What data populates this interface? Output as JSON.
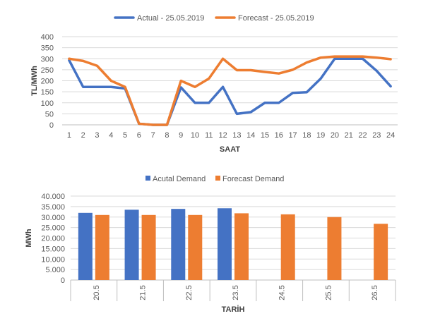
{
  "colors": {
    "actual": "#4472C4",
    "forecast": "#ED7D31",
    "grid": "#D9D9D9",
    "axis": "#BFBFBF"
  },
  "chart_data": [
    {
      "type": "line",
      "title": "",
      "xlabel": "SAAT",
      "ylabel": "TL/MWh",
      "categories": [
        "1",
        "2",
        "3",
        "4",
        "5",
        "6",
        "7",
        "8",
        "9",
        "10",
        "11",
        "12",
        "13",
        "14",
        "15",
        "16",
        "17",
        "18",
        "19",
        "20",
        "21",
        "22",
        "23",
        "24"
      ],
      "ylim": [
        0,
        400
      ],
      "yticks": [
        "0",
        "50",
        "100",
        "150",
        "200",
        "250",
        "300",
        "350",
        "400"
      ],
      "grid": true,
      "legend": "top-center",
      "series": [
        {
          "name": "Actual - 25.05.2019",
          "color_key": "actual",
          "values": [
            293,
            172,
            172,
            172,
            165,
            5,
            0,
            0,
            170,
            100,
            100,
            172,
            50,
            58,
            100,
            100,
            145,
            148,
            210,
            300,
            300,
            300,
            245,
            175
          ]
        },
        {
          "name": "Forecast - 25.05.2019",
          "color_key": "forecast",
          "values": [
            300,
            290,
            268,
            200,
            172,
            5,
            0,
            0,
            200,
            172,
            210,
            300,
            248,
            248,
            240,
            233,
            250,
            283,
            305,
            310,
            310,
            310,
            305,
            298
          ]
        }
      ]
    },
    {
      "type": "bar",
      "title": "",
      "xlabel": "TARİH",
      "ylabel": "MWh",
      "categories": [
        "20.5",
        "21.5",
        "22.5",
        "23.5",
        "24.5",
        "25.5",
        "26.5"
      ],
      "ylim": [
        0,
        40000
      ],
      "yticks": [
        "0",
        "5.000",
        "10.000",
        "15.000",
        "20.000",
        "25.000",
        "30.000",
        "35.000",
        "40.000"
      ],
      "grid": true,
      "legend": "top-center",
      "series": [
        {
          "name": "Acutal Demand",
          "color_key": "actual",
          "values": [
            32000,
            33500,
            33900,
            34200,
            null,
            null,
            null
          ]
        },
        {
          "name": "Forecast Demand",
          "color_key": "forecast",
          "values": [
            31000,
            31000,
            31000,
            31800,
            31300,
            30000,
            26800
          ]
        }
      ]
    }
  ]
}
